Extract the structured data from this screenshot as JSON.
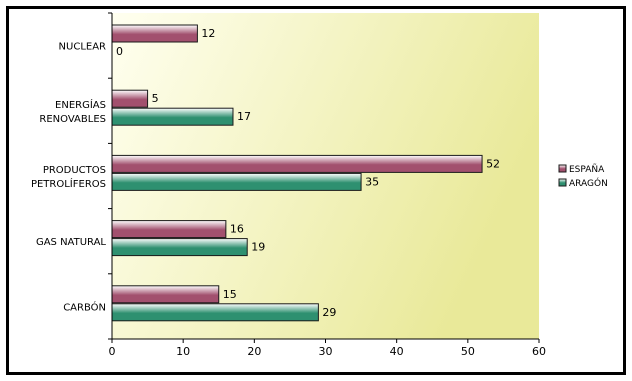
{
  "chart_data": {
    "type": "bar",
    "orientation": "horizontal",
    "categories": [
      [
        "NUCLEAR"
      ],
      [
        "ENERGÍAS",
        "RENOVABLES"
      ],
      [
        "PRODUCTOS",
        "PETROLÍFEROS"
      ],
      [
        "GAS NATURAL"
      ],
      [
        "CARBÓN"
      ]
    ],
    "series": [
      {
        "name": "ESPAÑA",
        "values": [
          12,
          5,
          52,
          16,
          15
        ],
        "color": "#a2506e"
      },
      {
        "name": "ARAGÓN",
        "values": [
          0,
          17,
          35,
          19,
          29
        ],
        "color": "#2e9070"
      }
    ],
    "xlim": [
      0,
      60
    ],
    "xticks": [
      0,
      10,
      20,
      30,
      40,
      50,
      60
    ],
    "grid": false,
    "legend_position": "right",
    "plot_background": [
      "#fffff0",
      "#e9e999"
    ]
  }
}
